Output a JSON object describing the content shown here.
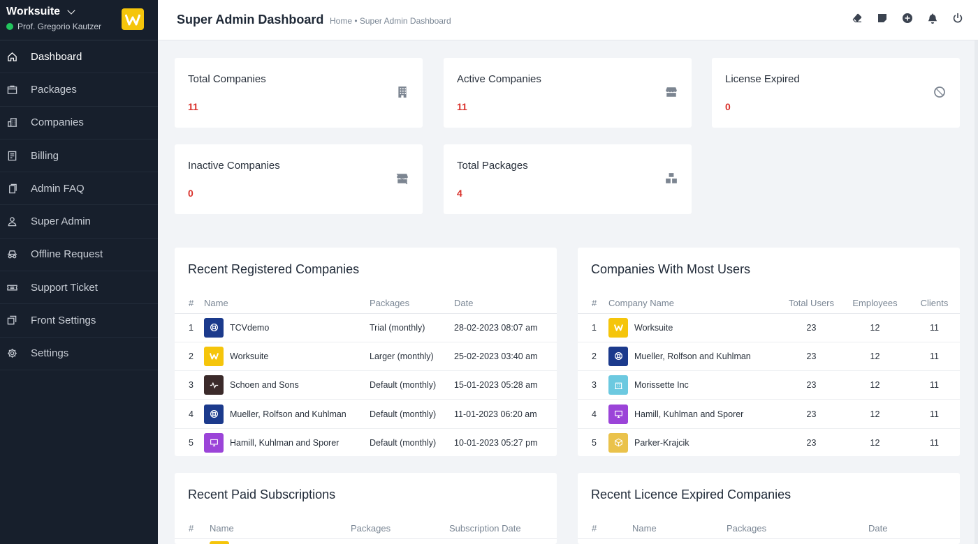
{
  "brand": {
    "name": "Worksuite",
    "user": "Prof. Gregorio Kautzer",
    "logo_letter": "W",
    "logo_color": "#f5c50b"
  },
  "sidebar": {
    "items": [
      {
        "label": "Dashboard",
        "icon": "house-icon",
        "active": true
      },
      {
        "label": "Packages",
        "icon": "package-icon"
      },
      {
        "label": "Companies",
        "icon": "building-icon"
      },
      {
        "label": "Billing",
        "icon": "receipt-icon"
      },
      {
        "label": "Admin FAQ",
        "icon": "files-icon"
      },
      {
        "label": "Super Admin",
        "icon": "person-icon"
      },
      {
        "label": "Offline Request",
        "icon": "incognito-icon"
      },
      {
        "label": "Support Ticket",
        "icon": "ticket-icon"
      },
      {
        "label": "Front Settings",
        "icon": "layers-icon"
      },
      {
        "label": "Settings",
        "icon": "gear-icon"
      }
    ]
  },
  "header": {
    "title": "Super Admin Dashboard",
    "breadcrumb": "Home • Super Admin Dashboard",
    "actions": [
      "eraser-icon",
      "sticky-note-icon",
      "plus-circle-icon",
      "bell-icon",
      "power-icon"
    ]
  },
  "stats": [
    {
      "label": "Total Companies",
      "value": "11",
      "icon": "building-icon"
    },
    {
      "label": "Active Companies",
      "value": "11",
      "icon": "shop-icon"
    },
    {
      "label": "License Expired",
      "value": "0",
      "icon": "slash-circle-icon"
    },
    {
      "label": "Inactive Companies",
      "value": "0",
      "icon": "shop-slash-icon"
    },
    {
      "label": "Total Packages",
      "value": "4",
      "icon": "boxes-icon"
    }
  ],
  "recent_companies": {
    "title": "Recent Registered Companies",
    "columns": [
      "#",
      "Name",
      "Packages",
      "Date"
    ],
    "rows": [
      {
        "num": "1",
        "name": "TCVdemo",
        "package": "Trial (monthly)",
        "date": "28-02-2023 08:07 am",
        "avatar_color": "#1b3a8c",
        "avatar": "life-ring-icon"
      },
      {
        "num": "2",
        "name": "Worksuite",
        "package": "Larger (monthly)",
        "date": "25-02-2023 03:40 am",
        "avatar_color": "#f5c50b",
        "avatar": "worksuite-logo"
      },
      {
        "num": "3",
        "name": "Schoen and Sons",
        "package": "Default (monthly)",
        "date": "15-01-2023 05:28 am",
        "avatar_color": "#3b2a2a",
        "avatar": "pulse-icon"
      },
      {
        "num": "4",
        "name": "Mueller, Rolfson and Kuhlman",
        "package": "Default (monthly)",
        "date": "11-01-2023 06:20 am",
        "avatar_color": "#1b3a8c",
        "avatar": "life-ring-icon"
      },
      {
        "num": "5",
        "name": "Hamill, Kuhlman and Sporer",
        "package": "Default (monthly)",
        "date": "10-01-2023 05:27 pm",
        "avatar_color": "#9b44d8",
        "avatar": "monitor-icon"
      }
    ]
  },
  "most_users": {
    "title": "Companies With Most Users",
    "columns": [
      "#",
      "Company Name",
      "Total Users",
      "Employees",
      "Clients"
    ],
    "rows": [
      {
        "num": "1",
        "name": "Worksuite",
        "users": "23",
        "employees": "12",
        "clients": "11",
        "avatar_color": "#f5c50b",
        "avatar": "worksuite-logo"
      },
      {
        "num": "2",
        "name": "Mueller, Rolfson and Kuhlman",
        "users": "23",
        "employees": "12",
        "clients": "11",
        "avatar_color": "#1b3a8c",
        "avatar": "life-ring-icon"
      },
      {
        "num": "3",
        "name": "Morissette Inc",
        "users": "23",
        "employees": "12",
        "clients": "11",
        "avatar_color": "#6cc9e0",
        "avatar": "building-icon"
      },
      {
        "num": "4",
        "name": "Hamill, Kuhlman and Sporer",
        "users": "23",
        "employees": "12",
        "clients": "11",
        "avatar_color": "#9b44d8",
        "avatar": "monitor-icon"
      },
      {
        "num": "5",
        "name": "Parker-Krajcik",
        "users": "23",
        "employees": "12",
        "clients": "11",
        "avatar_color": "#eac24b",
        "avatar": "cube-icon"
      }
    ]
  },
  "paid_subscriptions": {
    "title": "Recent Paid Subscriptions",
    "columns": [
      "#",
      "Name",
      "Packages",
      "Subscription Date"
    ]
  },
  "licence_expired": {
    "title": "Recent Licence Expired Companies",
    "columns": [
      "#",
      "Name",
      "Packages",
      "Date"
    ]
  }
}
